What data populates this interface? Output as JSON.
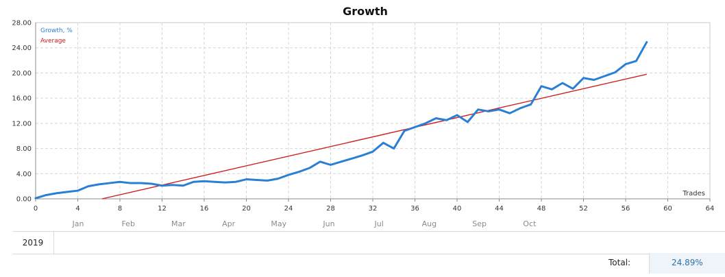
{
  "chart_data": {
    "type": "line",
    "title": "Growth",
    "xlabel": "Trades",
    "ylabel": "",
    "xlim": [
      0,
      64
    ],
    "ylim": [
      0,
      28
    ],
    "x_ticks": [
      "0",
      "4",
      "8",
      "12",
      "16",
      "20",
      "24",
      "28",
      "32",
      "36",
      "40",
      "44",
      "48",
      "52",
      "56",
      "60",
      "64"
    ],
    "y_ticks": [
      "0.00",
      "4.00",
      "8.00",
      "12.00",
      "16.00",
      "20.00",
      "24.00",
      "28.00"
    ],
    "grid": true,
    "legend_position": "top-left",
    "series": [
      {
        "name": "Growth, %",
        "color": "#2a7fd4",
        "x": [
          0,
          1,
          2,
          3,
          4,
          5,
          6,
          7,
          8,
          9,
          10,
          11,
          12,
          13,
          14,
          15,
          16,
          17,
          18,
          19,
          20,
          21,
          22,
          23,
          24,
          25,
          26,
          27,
          28,
          29,
          30,
          31,
          32,
          33,
          34,
          35,
          36,
          37,
          38,
          39,
          40,
          41,
          42,
          43,
          44,
          45,
          46,
          47,
          48,
          49,
          50,
          51,
          52,
          53,
          54,
          55,
          56,
          57,
          58
        ],
        "values": [
          0.1,
          0.6,
          0.9,
          1.1,
          1.3,
          2.0,
          2.3,
          2.5,
          2.7,
          2.5,
          2.5,
          2.4,
          2.1,
          2.2,
          2.1,
          2.7,
          2.8,
          2.7,
          2.6,
          2.7,
          3.1,
          3.0,
          2.9,
          3.2,
          3.8,
          4.3,
          4.9,
          5.9,
          5.4,
          5.9,
          6.4,
          6.9,
          7.5,
          8.9,
          8.0,
          10.8,
          11.4,
          12.0,
          12.8,
          12.5,
          13.3,
          12.2,
          14.2,
          13.9,
          14.2,
          13.6,
          14.4,
          15.0,
          17.9,
          17.4,
          18.4,
          17.5,
          19.2,
          18.9,
          19.5,
          20.1,
          21.4,
          21.9,
          24.9
        ]
      },
      {
        "name": "Average",
        "color": "#cc1f1f",
        "x": [
          6.3,
          58
        ],
        "values": [
          0.0,
          19.8
        ]
      }
    ]
  },
  "months": [
    "Jan",
    "Feb",
    "Mar",
    "Apr",
    "May",
    "Jun",
    "Jul",
    "Aug",
    "Sep",
    "Oct"
  ],
  "year": "2019",
  "total_label": "Total:",
  "total_value": "24.89%"
}
